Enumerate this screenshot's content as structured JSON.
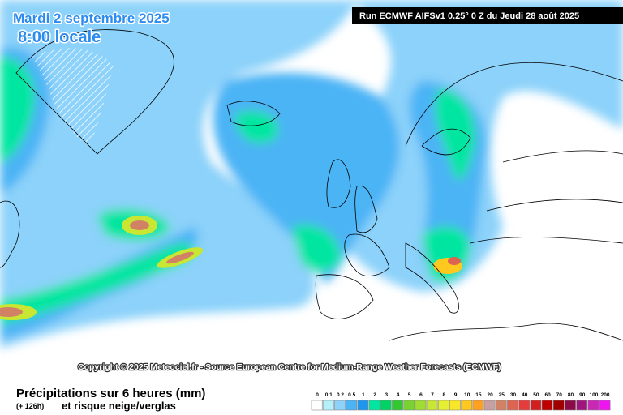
{
  "header": {
    "date": "Mardi 2 septembre 2025",
    "time": "8:00 locale",
    "run": "Run ECMWF AIFSv1 0.25° 0 Z du Jeudi 28 août 2025"
  },
  "copyright": "Copyright © 2025 Meteociel.fr - Source European Centre for Medium-Range Weather Forecasts (ECMWF)",
  "legend": {
    "title": "Précipitations sur 6 heures (mm)",
    "lead": "(+ 126h)",
    "subtitle": "et risque neige/verglas",
    "values": [
      0,
      0.1,
      0.2,
      0.5,
      1,
      2,
      3,
      4,
      5,
      6,
      7,
      8,
      9,
      10,
      15,
      20,
      25,
      30,
      40,
      50,
      60,
      70,
      80,
      90,
      100,
      200
    ],
    "colors": [
      "#ffffff",
      "#b4f0fa",
      "#8cd2fa",
      "#4bb4f5",
      "#1e96f0",
      "#00e6a0",
      "#00d264",
      "#32c832",
      "#78d232",
      "#a0dc32",
      "#c8e632",
      "#e6f032",
      "#fae628",
      "#ffc81e",
      "#ffa01e",
      "#c8a0a0",
      "#d28264",
      "#dc6450",
      "#e63c3c",
      "#d21e1e",
      "#be0000",
      "#a00000",
      "#8c0a46",
      "#a0147d",
      "#c828b4",
      "#f014f0"
    ]
  }
}
